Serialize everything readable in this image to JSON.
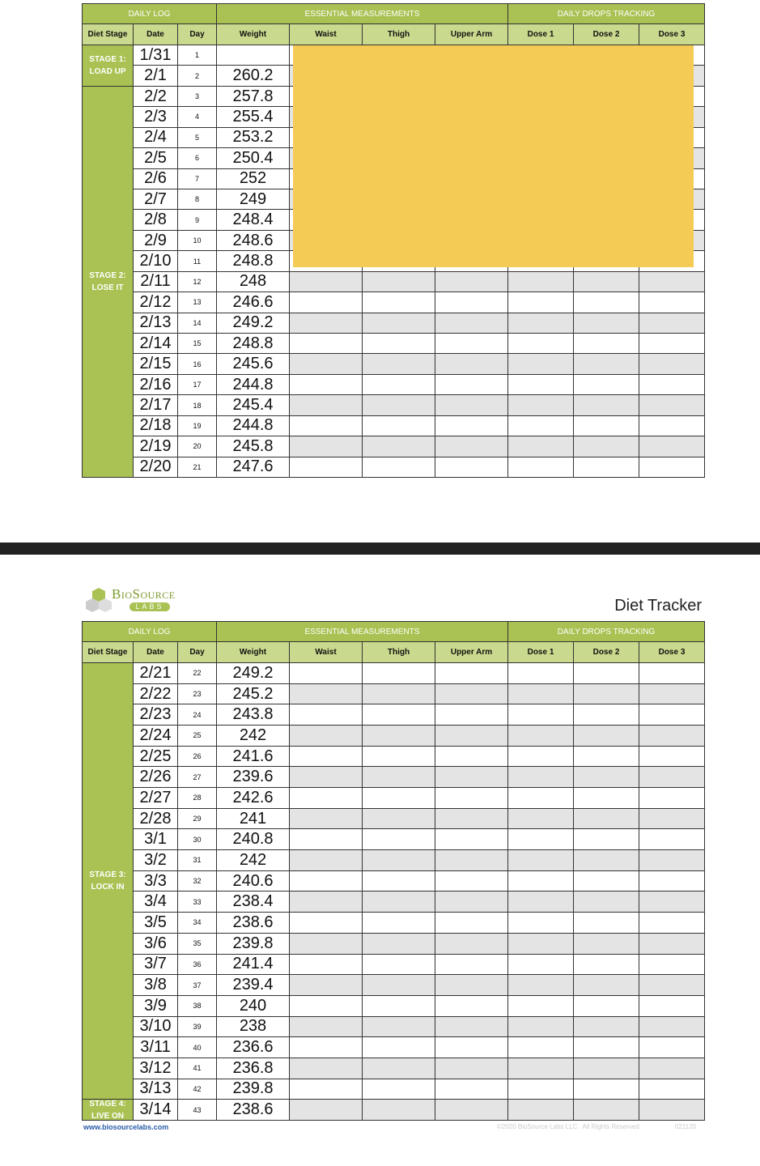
{
  "table1": {
    "groups": [
      "DAILY LOG",
      "ESSENTIAL MEASUREMENTS",
      "DAILY DROPS TRACKING"
    ],
    "columns": [
      "Diet Stage",
      "Date",
      "Day",
      "Weight",
      "Waist",
      "Thigh",
      "Upper Arm",
      "Dose 1",
      "Dose 2",
      "Dose 3"
    ],
    "stages": [
      {
        "label": "STAGE 1:",
        "name": "LOAD UP",
        "rows": [
          [
            "1/31",
            1,
            null
          ],
          [
            "2/1",
            2,
            260.2
          ]
        ]
      },
      {
        "label": "STAGE 2:",
        "name": "LOSE IT",
        "rows": [
          [
            "2/2",
            3,
            257.8
          ],
          [
            "2/3",
            4,
            255.4
          ],
          [
            "2/4",
            5,
            253.2
          ],
          [
            "2/5",
            6,
            250.4
          ],
          [
            "2/6",
            7,
            252
          ],
          [
            "2/7",
            8,
            249
          ],
          [
            "2/8",
            9,
            248.4
          ],
          [
            "2/9",
            10,
            248.6
          ],
          [
            "2/10",
            11,
            248.8
          ],
          [
            "2/11",
            12,
            248
          ],
          [
            "2/12",
            13,
            246.6
          ],
          [
            "2/13",
            14,
            249.2
          ],
          [
            "2/14",
            15,
            248.8
          ],
          [
            "2/15",
            16,
            245.6
          ],
          [
            "2/16",
            17,
            244.8
          ],
          [
            "2/17",
            18,
            245.4
          ],
          [
            "2/18",
            19,
            244.8
          ],
          [
            "2/19",
            20,
            245.8
          ],
          [
            "2/20",
            21,
            247.6
          ]
        ]
      }
    ]
  },
  "logo": {
    "name": "BioSource",
    "tagline": "LABS"
  },
  "title": "Diet Tracker",
  "table2": {
    "groups": [
      "DAILY LOG",
      "ESSENTIAL MEASUREMENTS",
      "DAILY DROPS TRACKING"
    ],
    "columns": [
      "Diet Stage",
      "Date",
      "Day",
      "Weight",
      "Waist",
      "Thigh",
      "Upper Arm",
      "Dose 1",
      "Dose 2",
      "Dose 3"
    ],
    "stages": [
      {
        "label": "STAGE 3:",
        "name": "LOCK IN",
        "rows": [
          [
            "2/21",
            22,
            249.2
          ],
          [
            "2/22",
            23,
            245.2
          ],
          [
            "2/23",
            24,
            243.8
          ],
          [
            "2/24",
            25,
            242
          ],
          [
            "2/25",
            26,
            241.6
          ],
          [
            "2/26",
            27,
            239.6
          ],
          [
            "2/27",
            28,
            242.6
          ],
          [
            "2/28",
            29,
            241
          ],
          [
            "3/1",
            30,
            240.8
          ],
          [
            "3/2",
            31,
            242
          ],
          [
            "3/3",
            32,
            240.6
          ],
          [
            "3/4",
            33,
            238.4
          ],
          [
            "3/5",
            34,
            238.6
          ],
          [
            "3/6",
            35,
            239.8
          ],
          [
            "3/7",
            36,
            241.4
          ],
          [
            "3/8",
            37,
            239.4
          ],
          [
            "3/9",
            38,
            240
          ],
          [
            "3/10",
            39,
            238
          ],
          [
            "3/11",
            40,
            236.6
          ],
          [
            "3/12",
            41,
            236.8
          ],
          [
            "3/13",
            42,
            239.8
          ]
        ]
      },
      {
        "label": "STAGE 4:",
        "name": "LIVE ON",
        "rows": [
          [
            "3/14",
            43,
            238.6
          ]
        ]
      }
    ]
  },
  "footer": {
    "url": "www.biosourcelabs.com",
    "copyright": "©2020 BioSource Labs LLC.  All Rights Reserved",
    "code": "021120"
  }
}
